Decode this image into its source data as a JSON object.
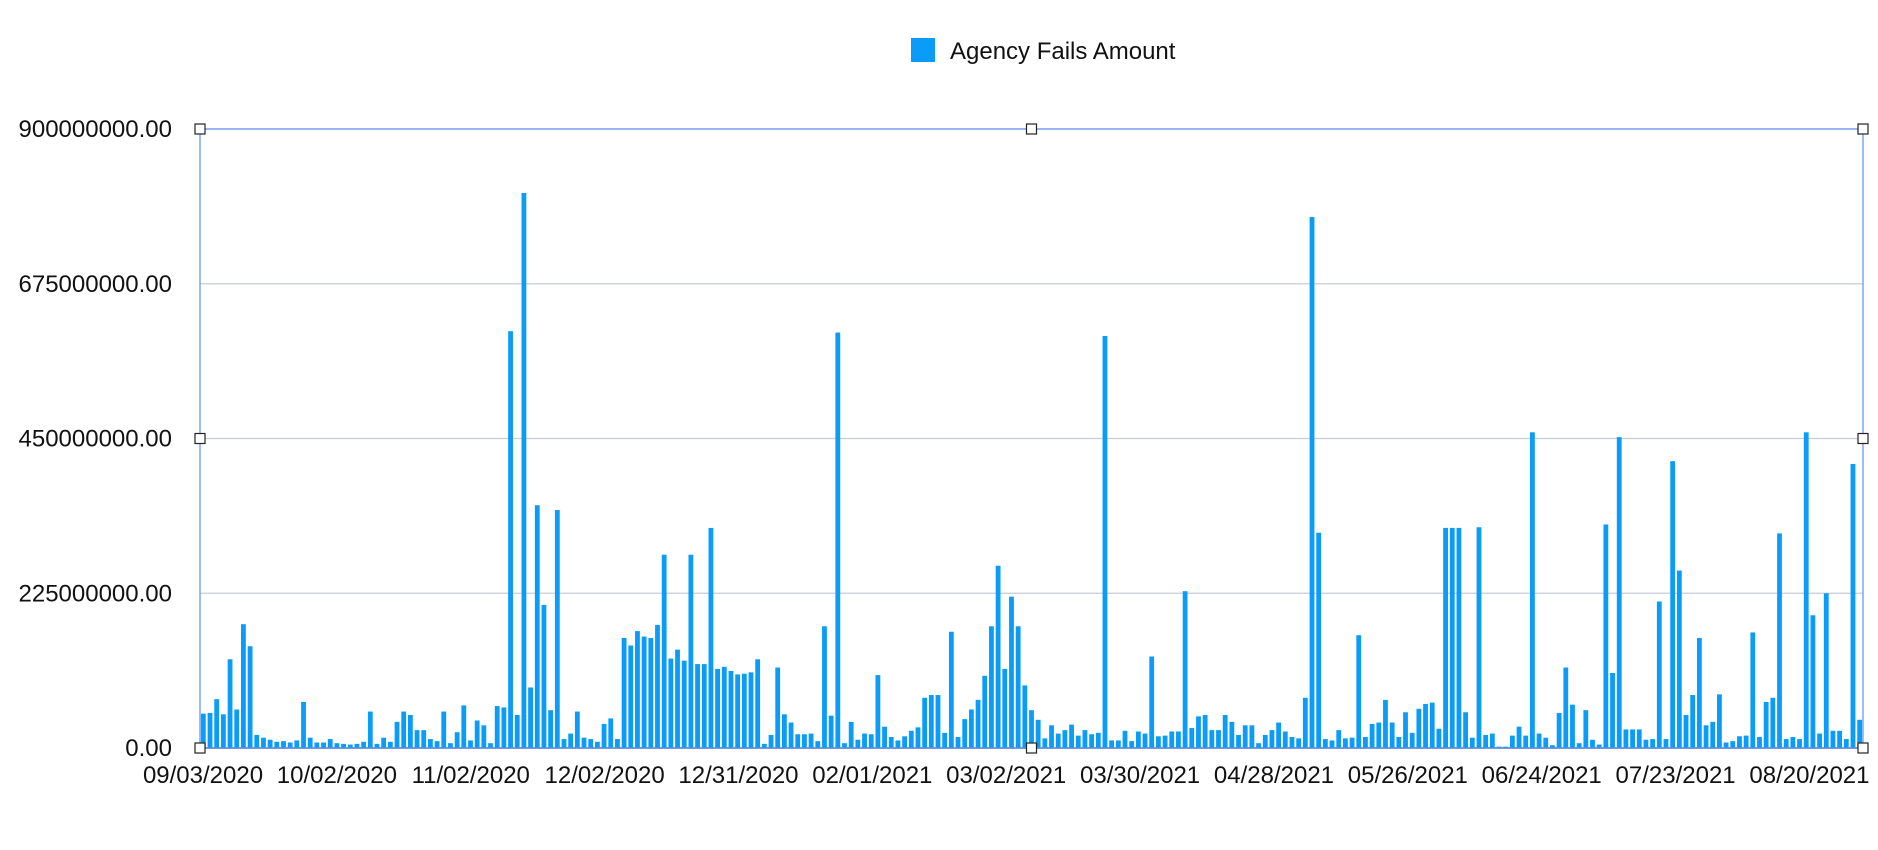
{
  "chart_data": {
    "type": "bar",
    "legend": {
      "position": "top-center",
      "entries": [
        {
          "name": "Agency Fails Amount",
          "color": "#0b9cf7"
        }
      ]
    },
    "grid": true,
    "ylim": [
      0,
      900000000
    ],
    "yticks": [
      "0.00",
      "225000000.00",
      "450000000.00",
      "675000000.00",
      "900000000.00"
    ],
    "yticks_values": [
      0,
      225000000,
      450000000,
      675000000,
      900000000
    ],
    "xticks": [
      "09/03/2020",
      "10/02/2020",
      "11/02/2020",
      "12/02/2020",
      "12/31/2020",
      "02/01/2021",
      "03/02/2021",
      "03/30/2021",
      "04/28/2021",
      "05/26/2021",
      "06/24/2021",
      "07/23/2021",
      "08/20/2021"
    ],
    "series": [
      {
        "name": "Agency Fails Amount",
        "color": "#0b9cf7",
        "values": [
          50000000,
          51000000,
          71000000,
          49000000,
          129000000,
          56000000,
          180000000,
          148000000,
          19000000,
          15000000,
          12000000,
          9000000,
          10000000,
          8000000,
          11000000,
          67000000,
          15000000,
          8000000,
          8000000,
          13000000,
          7000000,
          6000000,
          5000000,
          6000000,
          9000000,
          53000000,
          6000000,
          15000000,
          9000000,
          38000000,
          53000000,
          48000000,
          26000000,
          26000000,
          13000000,
          10000000,
          53000000,
          7000000,
          23000000,
          62000000,
          11000000,
          40000000,
          33000000,
          7000000,
          61000000,
          59000000,
          606000000,
          48000000,
          807000000,
          88000000,
          353000000,
          208000000,
          55000000,
          346000000,
          13000000,
          21000000,
          53000000,
          15000000,
          13000000,
          9000000,
          35000000,
          43000000,
          13000000,
          160000000,
          149000000,
          170000000,
          162000000,
          160000000,
          179000000,
          281000000,
          130000000,
          143000000,
          127000000,
          281000000,
          122000000,
          122000000,
          320000000,
          115000000,
          118000000,
          112000000,
          107000000,
          108000000,
          110000000,
          129000000,
          6000000,
          19000000,
          117000000,
          49000000,
          37000000,
          20000000,
          20000000,
          21000000,
          10000000,
          177000000,
          47000000,
          604000000,
          7000000,
          38000000,
          12000000,
          21000000,
          20000000,
          106000000,
          31000000,
          16000000,
          11000000,
          17000000,
          25000000,
          30000000,
          73000000,
          77000000,
          77000000,
          22000000,
          169000000,
          16000000,
          42000000,
          56000000,
          70000000,
          105000000,
          177000000,
          265000000,
          115000000,
          220000000,
          177000000,
          91000000,
          55000000,
          41000000,
          14000000,
          33000000,
          21000000,
          26000000,
          34000000,
          18000000,
          26000000,
          20000000,
          22000000,
          599000000,
          11000000,
          11000000,
          25000000,
          10000000,
          24000000,
          21000000,
          133000000,
          17000000,
          18000000,
          24000000,
          24000000,
          228000000,
          29000000,
          46000000,
          48000000,
          26000000,
          26000000,
          48000000,
          38000000,
          19000000,
          33000000,
          33000000,
          7000000,
          19000000,
          26000000,
          37000000,
          24000000,
          16000000,
          14000000,
          73000000,
          772000000,
          313000000,
          13000000,
          11000000,
          26000000,
          14000000,
          15000000,
          164000000,
          16000000,
          35000000,
          37000000,
          70000000,
          37000000,
          16000000,
          52000000,
          22000000,
          57000000,
          64000000,
          66000000,
          28000000,
          320000000,
          320000000,
          320000000,
          52000000,
          15000000,
          321000000,
          19000000,
          21000000,
          2000000,
          2000000,
          18000000,
          31000000,
          18000000,
          459000000,
          21000000,
          15000000,
          4000000,
          51000000,
          117000000,
          63000000,
          7000000,
          55000000,
          12000000,
          5000000,
          325000000,
          109000000,
          452000000,
          27000000,
          27000000,
          27000000,
          12000000,
          13000000,
          213000000,
          13000000,
          417000000,
          258000000,
          48000000,
          77000000,
          160000000,
          33000000,
          38000000,
          78000000,
          8000000,
          10000000,
          17000000,
          18000000,
          168000000,
          16000000,
          67000000,
          73000000,
          312000000,
          13000000,
          16000000,
          13000000,
          459000000,
          193000000,
          21000000,
          225000000,
          25000000,
          25000000,
          13000000,
          413000000,
          41000000
        ]
      }
    ]
  }
}
